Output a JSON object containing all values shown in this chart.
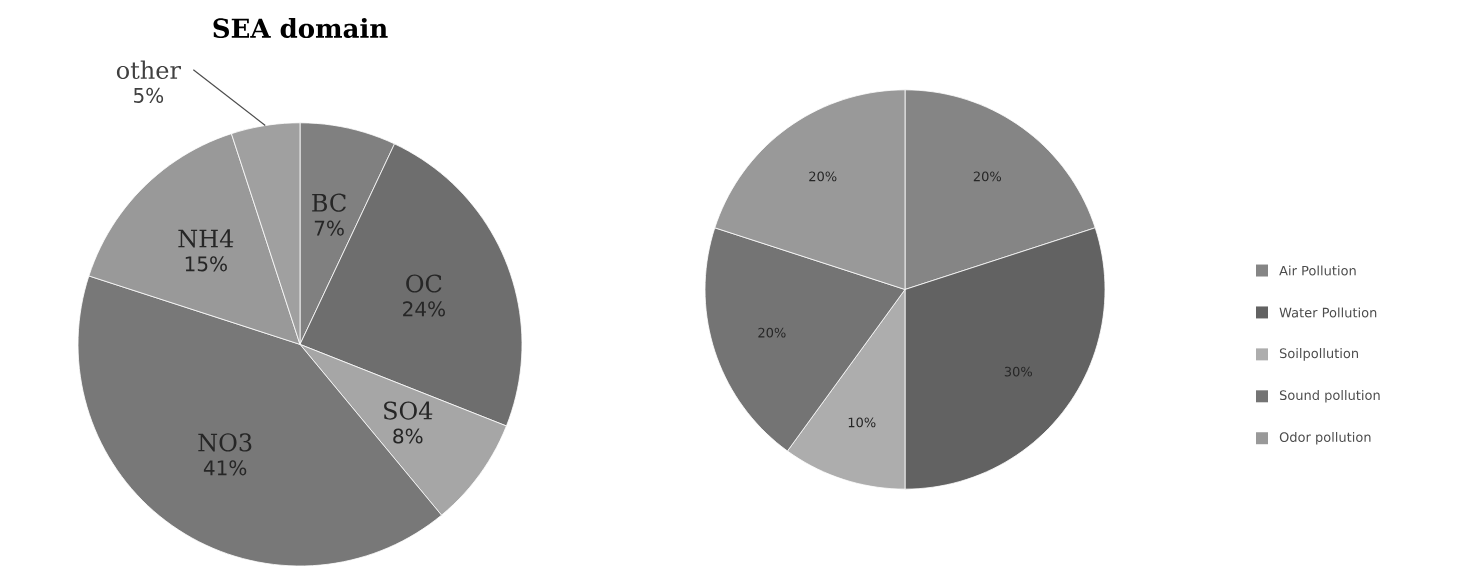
{
  "chart_data": [
    {
      "type": "pie",
      "title": "SEA domain",
      "categories": [
        "BC",
        "OC",
        "SO4",
        "NO3",
        "NH4",
        "other"
      ],
      "values": [
        7,
        24,
        8,
        41,
        15,
        5
      ],
      "value_labels": [
        "7%",
        "24%",
        "8%",
        "41%",
        "15%",
        "5%"
      ],
      "colors": [
        "#808080",
        "#6e6e6e",
        "#a6a6a6",
        "#787878",
        "#999999",
        "#a0a0a0"
      ],
      "legend": false
    },
    {
      "type": "pie",
      "categories": [
        "Air Pollution",
        "Water Pollution",
        "Soilpollution",
        "Sound pollution",
        "Odor pollution"
      ],
      "values": [
        20,
        30,
        10,
        20,
        20
      ],
      "value_labels": [
        "20%",
        "30%",
        "10%",
        "20%",
        "20%"
      ],
      "colors": [
        "#858585",
        "#626262",
        "#adadad",
        "#747474",
        "#999999"
      ],
      "legend": "right"
    }
  ]
}
